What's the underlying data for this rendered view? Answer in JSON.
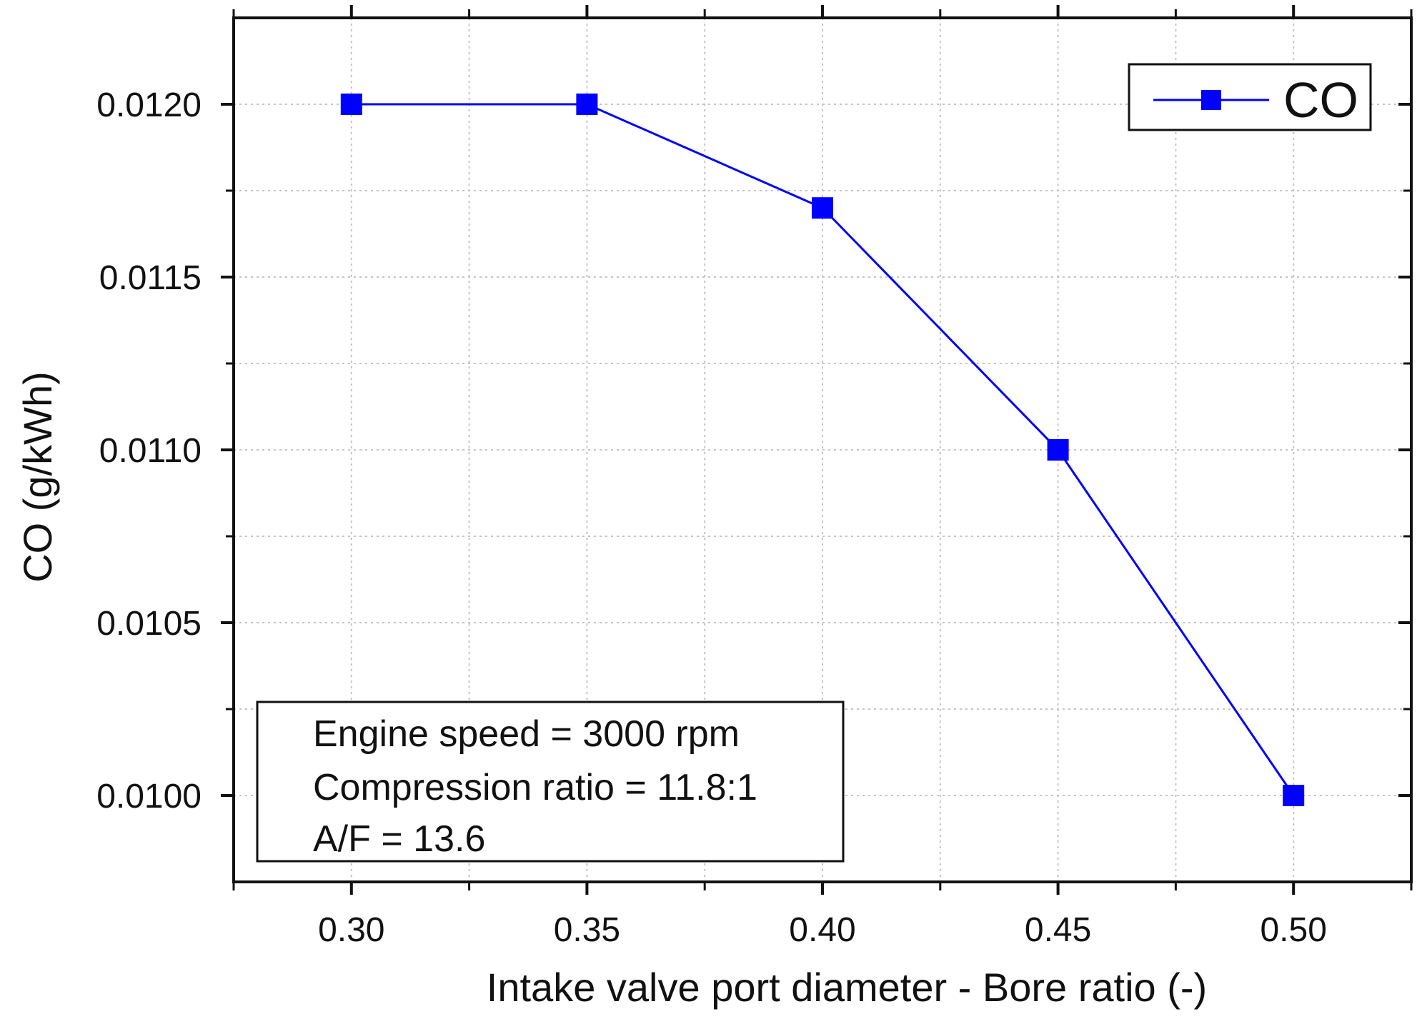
{
  "chart_data": {
    "type": "line",
    "xlabel": "Intake valve port diameter - Bore ratio (-)",
    "ylabel": "CO (g/kWh)",
    "xlim": [
      0.275,
      0.525
    ],
    "ylim": [
      0.00975,
      0.01225
    ],
    "x_ticks": [
      0.3,
      0.35,
      0.4,
      0.45,
      0.5
    ],
    "x_tick_labels": [
      "0.30",
      "0.35",
      "0.40",
      "0.45",
      "0.50"
    ],
    "x_minor_ticks": [
      0.275,
      0.325,
      0.375,
      0.425,
      0.475,
      0.525
    ],
    "y_ticks": [
      0.01,
      0.0105,
      0.011,
      0.0115,
      0.012
    ],
    "y_tick_labels": [
      "0.0100",
      "0.0105",
      "0.0110",
      "0.0115",
      "0.0120"
    ],
    "y_minor_ticks": [
      0.01025,
      0.01075,
      0.01125,
      0.01175
    ],
    "grid": true,
    "legend_position": "top-right",
    "series": [
      {
        "name": "CO",
        "color": "#0000ff",
        "marker": "square",
        "x": [
          0.3,
          0.35,
          0.4,
          0.45,
          0.5
        ],
        "y": [
          0.012,
          0.012,
          0.0117,
          0.011,
          0.01
        ]
      }
    ],
    "annotation": {
      "position": "bottom-left",
      "lines": [
        "Engine speed = 3000 rpm",
        "Compression ratio = 11.8:1",
        "A/F = 13.6"
      ]
    }
  }
}
